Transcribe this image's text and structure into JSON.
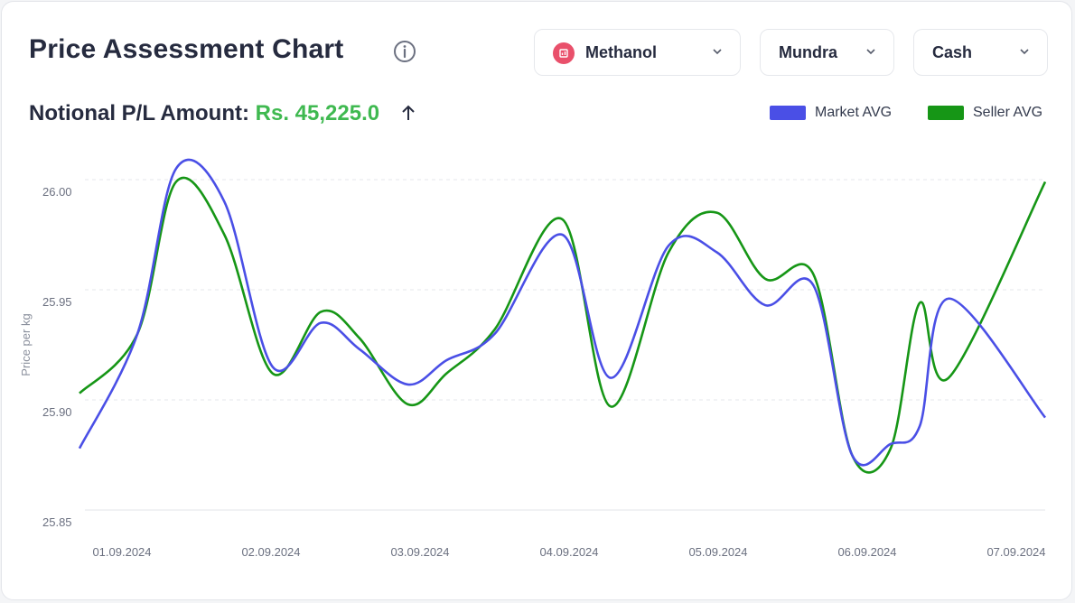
{
  "header": {
    "title": "Price Assessment Chart",
    "info_icon": "info-circle-icon"
  },
  "filters": {
    "product": {
      "label": "Methanol",
      "icon": "bar-chart-icon",
      "icon_color": "#e9506b"
    },
    "location": {
      "label": "Mundra"
    },
    "type": {
      "label": "Cash"
    }
  },
  "pl": {
    "label": "Notional P/L Amount:",
    "amount": "Rs. 45,225.0",
    "amount_color": "#3fb950",
    "trend_icon": "arrow-up-icon"
  },
  "chart_data": {
    "type": "line",
    "ylabel": "Price per kg",
    "ylim": [
      25.85,
      26.0
    ],
    "yticks": [
      "25.85",
      "25.90",
      "25.95",
      "26.00"
    ],
    "grid": true,
    "legend": "top-right",
    "x": [
      "01.09.2024",
      "01.09.2024",
      "01.09.2024",
      "01.09.2024",
      "02.09.2024",
      "02.09.2024",
      "02.09.2024",
      "03.09.2024",
      "03.09.2024",
      "03.09.2024",
      "04.09.2024",
      "04.09.2024",
      "04.09.2024",
      "05.09.2024",
      "05.09.2024",
      "05.09.2024",
      "06.09.2024",
      "06.09.2024",
      "06.09.2024",
      "06.09.2024",
      "07.09.2024"
    ],
    "x_tick_labels": [
      "01.09.2024",
      "02.09.2024",
      "03.09.2024",
      "04.09.2024",
      "05.09.2024",
      "06.09.2024",
      "07.09.2024"
    ],
    "x_positions": [
      0.0,
      0.06,
      0.1,
      0.15,
      0.2,
      0.25,
      0.29,
      0.34,
      0.38,
      0.43,
      0.5,
      0.55,
      0.61,
      0.66,
      0.71,
      0.76,
      0.8,
      0.84,
      0.87,
      0.9,
      1.0
    ],
    "series": [
      {
        "name": "Market AVG",
        "color": "#4a4fe6",
        "values": [
          25.878,
          25.93,
          26.005,
          25.99,
          25.915,
          25.935,
          25.923,
          25.907,
          25.918,
          25.93,
          25.975,
          25.91,
          25.97,
          25.967,
          25.943,
          25.952,
          25.875,
          25.88,
          25.888,
          25.946,
          25.892
        ]
      },
      {
        "name": "Seller AVG",
        "color": "#169616",
        "values": [
          25.903,
          25.93,
          25.999,
          25.975,
          25.912,
          25.94,
          25.928,
          25.898,
          25.912,
          25.932,
          25.982,
          25.897,
          25.967,
          25.985,
          25.955,
          25.957,
          25.875,
          25.878,
          25.944,
          25.91,
          25.999
        ]
      }
    ]
  }
}
